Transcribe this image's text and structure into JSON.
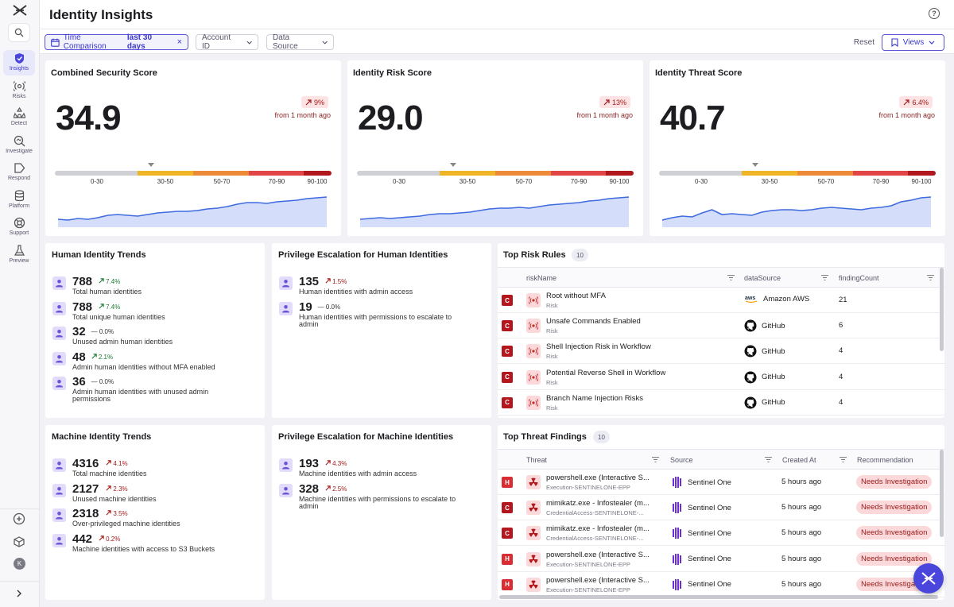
{
  "app": {
    "title": "Identity Insights"
  },
  "nav": {
    "items": [
      {
        "label": "Insights",
        "icon": "shield-check-icon"
      },
      {
        "label": "Risks",
        "icon": "radar-icon"
      },
      {
        "label": "Detect",
        "icon": "detect-icon"
      },
      {
        "label": "Investigate",
        "icon": "investigate-icon"
      },
      {
        "label": "Respond",
        "icon": "respond-icon"
      },
      {
        "label": "Platform",
        "icon": "database-icon"
      },
      {
        "label": "Support",
        "icon": "lifebuoy-icon"
      },
      {
        "label": "Preview",
        "icon": "flask-icon"
      }
    ],
    "avatar": "K"
  },
  "filters": {
    "time_label": "Time Comparison",
    "time_value": "last 30 days",
    "account": "Account ID",
    "source": "Data Source",
    "reset": "Reset",
    "views": "Views"
  },
  "scores": [
    {
      "title": "Combined Security Score",
      "value": "34.9",
      "delta": "9%",
      "from": "from 1 month ago"
    },
    {
      "title": "Identity Risk Score",
      "value": "29.0",
      "delta": "13%",
      "from": "from 1 month ago"
    },
    {
      "title": "Identity Threat Score",
      "value": "40.7",
      "delta": "6.4%",
      "from": "from 1 month ago"
    }
  ],
  "scale_labels": [
    "0-30",
    "30-50",
    "50-70",
    "70-90",
    "90-100"
  ],
  "scale_colors": [
    "#cfcfd6",
    "#f0b427",
    "#ec8a37",
    "#e14545",
    "#b0181d"
  ],
  "human_trends": {
    "title": "Human Identity Trends",
    "items": [
      {
        "value": "788",
        "change": "7.4%",
        "dir": "up2",
        "desc": "Total human identities"
      },
      {
        "value": "788",
        "change": "7.4%",
        "dir": "up2",
        "desc": "Total unique human identities"
      },
      {
        "value": "32",
        "change": "0.0%",
        "dir": "flat",
        "desc": "Unused admin human identities"
      },
      {
        "value": "48",
        "change": "2.1%",
        "dir": "up2",
        "desc": "Admin human identities without MFA enabled"
      },
      {
        "value": "36",
        "change": "0.0%",
        "dir": "flat",
        "desc": "Admin human identities with unused admin permissions"
      }
    ]
  },
  "priv_human": {
    "title": "Privilege Escalation for Human Identities",
    "items": [
      {
        "value": "135",
        "change": "1.5%",
        "dir": "up",
        "desc": "Human identities with admin access"
      },
      {
        "value": "19",
        "change": "0.0%",
        "dir": "flat",
        "desc": "Human identities with permissions to escalate to admin"
      }
    ]
  },
  "machine_trends": {
    "title": "Machine Identity Trends",
    "items": [
      {
        "value": "4316",
        "change": "4.1%",
        "dir": "up",
        "desc": "Total machine identities"
      },
      {
        "value": "2127",
        "change": "2.3%",
        "dir": "up",
        "desc": "Unused machine identities"
      },
      {
        "value": "2318",
        "change": "3.5%",
        "dir": "up",
        "desc": "Over-privileged machine identities"
      },
      {
        "value": "442",
        "change": "0.2%",
        "dir": "up",
        "desc": "Machine identities with access to S3 Buckets"
      }
    ]
  },
  "priv_machine": {
    "title": "Privilege Escalation for Machine Identities",
    "items": [
      {
        "value": "193",
        "change": "4.3%",
        "dir": "up",
        "desc": "Machine identities with admin access"
      },
      {
        "value": "328",
        "change": "2.5%",
        "dir": "up",
        "desc": "Machine identities with permissions to escalate to admin"
      }
    ]
  },
  "risk_rules": {
    "title": "Top Risk Rules",
    "count": "10",
    "headers": [
      "riskName",
      "dataSource",
      "findingCount"
    ],
    "rows": [
      {
        "sev": "C",
        "name": "Root without MFA",
        "sub": "Risk",
        "source": "Amazon AWS",
        "src_icon": "aws",
        "count": "21"
      },
      {
        "sev": "C",
        "name": "Unsafe Commands Enabled",
        "sub": "Risk",
        "source": "GitHub",
        "src_icon": "github",
        "count": "6"
      },
      {
        "sev": "C",
        "name": "Shell Injection Risk in Workflow",
        "sub": "Risk",
        "source": "GitHub",
        "src_icon": "github",
        "count": "4"
      },
      {
        "sev": "C",
        "name": "Potential Reverse Shell in Workflow",
        "sub": "Risk",
        "source": "GitHub",
        "src_icon": "github",
        "count": "4"
      },
      {
        "sev": "C",
        "name": "Branch Name Injection Risks",
        "sub": "Risk",
        "source": "GitHub",
        "src_icon": "github",
        "count": "4"
      }
    ]
  },
  "threats": {
    "title": "Top Threat Findings",
    "count": "10",
    "headers": [
      "Threat",
      "Source",
      "Created At",
      "Recommendation"
    ],
    "rows": [
      {
        "sev": "H",
        "name": "powershell.exe (Interactive S...",
        "sub": "Execution-SENTINELONE-EPP",
        "source": "Sentinel One",
        "time": "5 hours ago",
        "rec": "Needs Investigation"
      },
      {
        "sev": "C",
        "name": "mimikatz.exe - Infostealer (m...",
        "sub": "CredentialAccess-SENTINELONE-...",
        "source": "Sentinel One",
        "time": "5 hours ago",
        "rec": "Needs Investigation"
      },
      {
        "sev": "C",
        "name": "mimikatz.exe - Infostealer (m...",
        "sub": "CredentialAccess-SENTINELONE-...",
        "source": "Sentinel One",
        "time": "5 hours ago",
        "rec": "Needs Investigation"
      },
      {
        "sev": "H",
        "name": "powershell.exe (Interactive S...",
        "sub": "Execution-SENTINELONE-EPP",
        "source": "Sentinel One",
        "time": "5 hours ago",
        "rec": "Needs Investigation"
      },
      {
        "sev": "H",
        "name": "powershell.exe (Interactive S...",
        "sub": "Execution-SENTINELONE-EPP",
        "source": "Sentinel One",
        "time": "5 hours ago",
        "rec": "Needs Investigation"
      }
    ]
  }
}
